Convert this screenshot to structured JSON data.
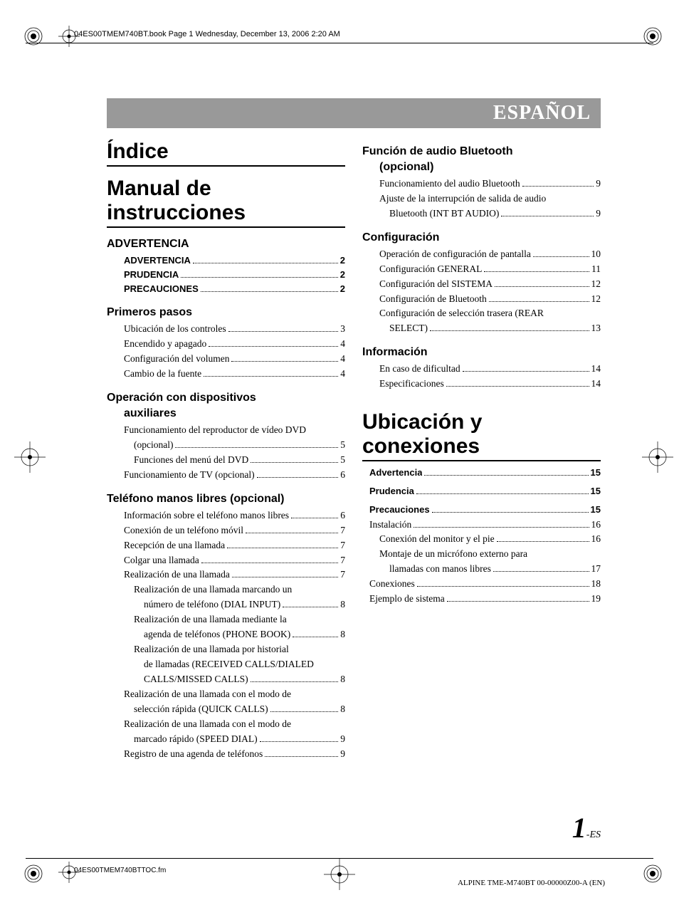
{
  "header_text": "04ES00TMEM740BT.book  Page 1  Wednesday, December 13, 2006  2:20 AM",
  "footer_left": "04ES00TMEM740BTTOC.fm",
  "footer_right": "ALPINE TME-M740BT 00-00000Z00-A (EN)",
  "lang_label": "ESPAÑOL",
  "page_number": "1",
  "page_suffix": "-ES",
  "left_column": {
    "title1": "Índice",
    "title2": "Manual de instrucciones",
    "sections": [
      {
        "heading": "ADVERTENCIA",
        "items": [
          {
            "label": "ADVERTENCIA",
            "page": "2",
            "bold": true
          },
          {
            "label": "PRUDENCIA",
            "page": "2",
            "bold": true
          },
          {
            "label": "PRECAUCIONES",
            "page": "2",
            "bold": true
          }
        ]
      },
      {
        "heading": "Primeros pasos",
        "items": [
          {
            "label": "Ubicación de los controles",
            "page": "3"
          },
          {
            "label": "Encendido y apagado",
            "page": "4"
          },
          {
            "label": "Configuración del volumen",
            "page": "4"
          },
          {
            "label": "Cambio de la fuente",
            "page": "4"
          }
        ]
      },
      {
        "heading": "Operación con dispositivos",
        "heading2": "auxiliares",
        "items": [
          {
            "label": "Funcionamiento del reproductor de vídeo DVD (opcional)",
            "page": "5"
          },
          {
            "label": "Funciones del menú del DVD",
            "page": "5",
            "sub": true
          },
          {
            "label": "Funcionamiento de TV (opcional)",
            "page": "6"
          }
        ]
      },
      {
        "heading": "Teléfono manos libres (opcional)",
        "items": [
          {
            "label": "Información sobre el teléfono manos libres",
            "page": "6"
          },
          {
            "label": "Conexión de un teléfono móvil",
            "page": "7"
          },
          {
            "label": "Recepción de una llamada",
            "page": "7"
          },
          {
            "label": "Colgar una llamada",
            "page": "7"
          },
          {
            "label": "Realización de una llamada",
            "page": "7"
          },
          {
            "label": "Realización de una llamada marcando un número de teléfono (DIAL INPUT)",
            "page": "8",
            "sub": true
          },
          {
            "label": "Realización de una llamada mediante la agenda de teléfonos (PHONE BOOK)",
            "page": "8",
            "sub": true
          },
          {
            "label": "Realización de una llamada por historial de llamadas (RECEIVED CALLS/DIALED CALLS/MISSED CALLS)",
            "page": "8",
            "sub": true
          },
          {
            "label": "Realización de una llamada con el modo de selección rápida (QUICK CALLS)",
            "page": "8"
          },
          {
            "label": "Realización de una llamada con el modo de marcado rápido (SPEED DIAL)",
            "page": "9"
          },
          {
            "label": "Registro de una agenda de teléfonos",
            "page": "9"
          }
        ]
      }
    ]
  },
  "right_column": {
    "sections": [
      {
        "heading": "Función de audio Bluetooth",
        "heading2": "(opcional)",
        "items": [
          {
            "label": "Funcionamiento del audio Bluetooth",
            "page": "9"
          },
          {
            "label": "Ajuste de la interrupción de salida de audio Bluetooth (INT BT AUDIO)",
            "page": "9"
          }
        ]
      },
      {
        "heading": "Configuración",
        "items": [
          {
            "label": "Operación de configuración de pantalla",
            "page": "10"
          },
          {
            "label": "Configuración GENERAL",
            "page": "11"
          },
          {
            "label": "Configuración del SISTEMA",
            "page": "12"
          },
          {
            "label": "Configuración de Bluetooth",
            "page": "12"
          },
          {
            "label": "Configuración de selección trasera (REAR SELECT)",
            "page": "13"
          }
        ]
      },
      {
        "heading": "Información",
        "items": [
          {
            "label": "En caso de dificultad",
            "page": "14"
          },
          {
            "label": "Especificaciones",
            "page": "14"
          }
        ]
      }
    ],
    "title2": "Ubicación y conexiones",
    "section2_items": [
      {
        "label": "Advertencia",
        "page": "15",
        "bold": true
      },
      {
        "label": "Prudencia",
        "page": "15",
        "bold": true
      },
      {
        "label": "Precauciones",
        "page": "15",
        "bold": true
      },
      {
        "label": "Instalación",
        "page": "16"
      },
      {
        "label": "Conexión del monitor y el pie",
        "page": "16",
        "sub": true
      },
      {
        "label": "Montaje de un micrófono externo para llamadas con manos libres",
        "page": "17",
        "sub": true
      },
      {
        "label": "Conexiones",
        "page": "18"
      },
      {
        "label": "Ejemplo de sistema",
        "page": "19"
      }
    ]
  },
  "colors": {
    "banner_bg": "#999999",
    "banner_text": "#ffffff",
    "text": "#000000",
    "page_bg": "#ffffff"
  }
}
